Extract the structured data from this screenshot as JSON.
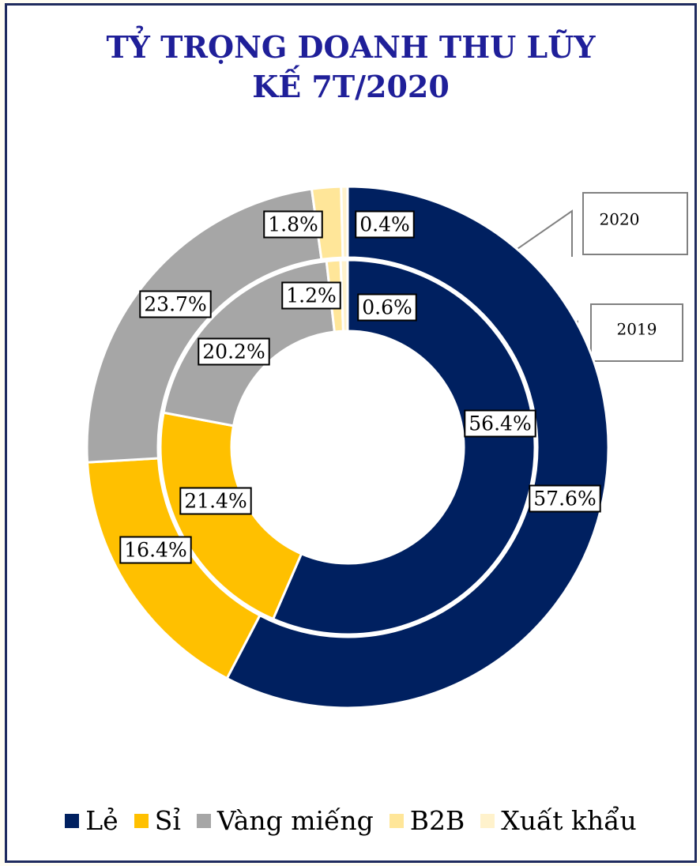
{
  "chart_data": {
    "type": "doughnut",
    "title": "TỶ TRỌNG DOANH THU LŨY KẾ 7T/2020",
    "categories": [
      "Lẻ",
      "Sỉ",
      "Vàng miếng",
      "B2B",
      "Xuất khẩu"
    ],
    "colors": [
      "#002060",
      "#ffc000",
      "#a6a6a6",
      "#ffe699",
      "#fff2cc"
    ],
    "series": [
      {
        "name": "2020",
        "values": [
          57.6,
          16.4,
          23.7,
          1.8,
          0.4
        ],
        "value_labels": [
          "57.6%",
          "16.4%",
          "23.7%",
          "1.8%",
          "0.4%"
        ]
      },
      {
        "name": "2019",
        "values": [
          56.4,
          21.4,
          20.2,
          1.2,
          0.6
        ],
        "value_labels": [
          "56.4%",
          "21.4%",
          "20.2%",
          "1.2%",
          "0.6%"
        ]
      }
    ],
    "legend": "bottom"
  }
}
